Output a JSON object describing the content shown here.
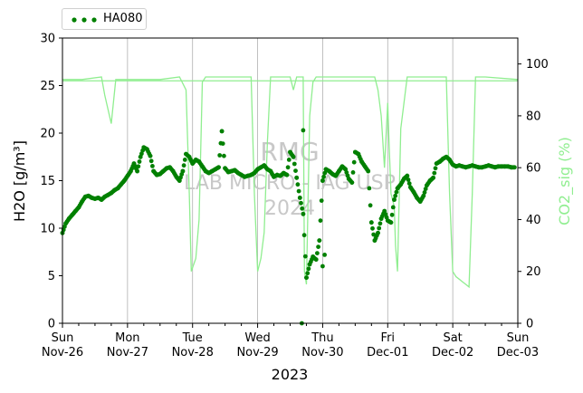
{
  "chart_data": {
    "type": "scatter",
    "xlabel": "2023",
    "ylabel_left": "H2O [g/m³]",
    "ylabel_right": "CO2_sig (%)",
    "ylim_left": [
      0,
      30
    ],
    "ylim_right": [
      0,
      110
    ],
    "xlim_days": [
      "2023-11-26",
      "2023-12-03"
    ],
    "yticks_left": [
      "0",
      "5",
      "10",
      "15",
      "20",
      "25",
      "30"
    ],
    "yticks_right": [
      "0",
      "20",
      "40",
      "60",
      "80",
      "100"
    ],
    "xticks": [
      {
        "day": "Sun",
        "date": "Nov-26"
      },
      {
        "day": "Mon",
        "date": "Nov-27"
      },
      {
        "day": "Tue",
        "date": "Nov-28"
      },
      {
        "day": "Wed",
        "date": "Nov-29"
      },
      {
        "day": "Thu",
        "date": "Nov-30"
      },
      {
        "day": "Fri",
        "date": "Dec-01"
      },
      {
        "day": "Sat",
        "date": "Dec-02"
      },
      {
        "day": "Sun",
        "date": "Dec-03"
      }
    ],
    "legend": {
      "position": "top-left",
      "entries": [
        "HA080"
      ]
    },
    "grid": "vertical",
    "colors": {
      "h2o": "#008000",
      "co2": "#90ee90"
    },
    "watermark": [
      "RMG",
      "LAB MICRO - IAG USP",
      "2024"
    ],
    "co2_reference_line": 93.5,
    "series": [
      {
        "name": "HA080",
        "axis": "left",
        "style": "dots",
        "x": [
          0,
          0.05,
          0.1,
          0.15,
          0.2,
          0.25,
          0.3,
          0.35,
          0.4,
          0.45,
          0.5,
          0.55,
          0.6,
          0.65,
          0.7,
          0.75,
          0.8,
          0.85,
          0.9,
          0.95,
          1.0,
          1.05,
          1.1,
          1.15,
          1.2,
          1.25,
          1.3,
          1.35,
          1.4,
          1.45,
          1.5,
          1.55,
          1.6,
          1.65,
          1.7,
          1.75,
          1.8,
          1.85,
          1.9,
          1.95,
          2.0,
          2.05,
          2.1,
          2.15,
          2.2,
          2.25,
          2.3,
          2.35,
          2.4,
          2.45,
          2.5,
          2.55,
          2.6,
          2.65,
          2.7,
          2.75,
          2.8,
          2.85,
          2.9,
          2.95,
          3.0,
          3.05,
          3.1,
          3.15,
          3.2,
          3.25,
          3.3,
          3.35,
          3.4,
          3.45,
          3.5,
          3.55,
          3.6,
          3.65,
          3.7,
          3.75,
          3.8,
          3.85,
          3.9,
          3.95,
          4.0,
          4.05,
          4.1,
          4.15,
          4.2,
          4.25,
          4.3,
          4.35,
          4.4,
          4.45,
          4.5,
          4.55,
          4.6,
          4.65,
          4.7,
          4.75,
          4.8,
          4.85,
          4.9,
          4.95,
          5.0,
          5.05,
          5.1,
          5.15,
          5.2,
          5.25,
          5.3,
          5.35,
          5.4,
          5.45,
          5.5,
          5.55,
          5.6,
          5.65,
          5.7,
          5.75,
          5.8,
          5.85,
          5.9,
          5.95,
          6.0,
          6.05,
          6.1,
          6.15,
          6.2,
          6.25,
          6.3,
          6.35,
          6.4,
          6.45,
          6.5,
          6.55,
          6.6,
          6.65,
          6.7,
          6.75,
          6.8,
          6.85,
          6.9,
          6.95,
          3.68,
          3.7,
          4.0,
          4.03
        ],
        "values": [
          9.5,
          10.5,
          11.0,
          11.4,
          11.8,
          12.2,
          12.8,
          13.3,
          13.4,
          13.2,
          13.1,
          13.2,
          13.0,
          13.3,
          13.5,
          13.7,
          14.0,
          14.2,
          14.6,
          15.0,
          15.5,
          16.0,
          16.8,
          16.0,
          17.5,
          18.5,
          18.3,
          17.6,
          16.0,
          15.6,
          15.7,
          16.0,
          16.3,
          16.4,
          16.0,
          15.4,
          15.0,
          16.0,
          17.8,
          17.5,
          16.8,
          17.2,
          17.0,
          16.5,
          16.0,
          15.8,
          16.0,
          16.2,
          16.4,
          20.2,
          16.3,
          15.9,
          16.0,
          16.1,
          15.8,
          15.6,
          15.4,
          15.5,
          15.6,
          15.8,
          16.2,
          16.4,
          16.6,
          16.2,
          16.0,
          15.4,
          15.6,
          15.5,
          15.8,
          15.6,
          18.0,
          17.5,
          15.3,
          13.2,
          11.5,
          4.8,
          6.2,
          7.0,
          6.7,
          8.7,
          15.0,
          16.2,
          16.0,
          15.7,
          15.5,
          16.0,
          16.5,
          16.2,
          15.2,
          14.8,
          18.0,
          17.8,
          17.0,
          16.5,
          16.0,
          10.6,
          8.7,
          9.5,
          11.0,
          11.8,
          10.8,
          10.6,
          13.0,
          14.2,
          14.6,
          15.2,
          15.5,
          14.3,
          13.8,
          13.2,
          12.8,
          13.4,
          14.5,
          15.0,
          15.3,
          16.8,
          17.0,
          17.3,
          17.5,
          17.2,
          16.7,
          16.5,
          16.6,
          16.5,
          16.4,
          16.5,
          16.6,
          16.5,
          16.4,
          16.4,
          16.5,
          16.6,
          16.5,
          16.4,
          16.5,
          16.5,
          16.5,
          16.5,
          16.4,
          16.4,
          0.0,
          20.3,
          6.0,
          7.2
        ],
        "x_active_max": 7.0
      },
      {
        "name": "CO2_sig",
        "axis": "right",
        "style": "line",
        "x": [
          0,
          0.3,
          0.6,
          0.65,
          0.75,
          0.82,
          0.88,
          0.92,
          1.0,
          1.5,
          1.8,
          1.9,
          1.95,
          1.98,
          2.05,
          2.1,
          2.15,
          2.2,
          2.3,
          2.6,
          2.9,
          2.95,
          3.0,
          3.05,
          3.1,
          3.15,
          3.2,
          3.3,
          3.5,
          3.55,
          3.6,
          3.7,
          3.72,
          3.75,
          3.8,
          3.85,
          3.9,
          4.0,
          4.5,
          4.8,
          4.85,
          4.9,
          4.95,
          5.0,
          5.02,
          5.05,
          5.1,
          5.12,
          5.15,
          5.2,
          5.3,
          5.8,
          5.9,
          5.95,
          6.0,
          6.05,
          6.1,
          6.15,
          6.2,
          6.25,
          6.3,
          6.35,
          6.4,
          6.5,
          7.0
        ],
        "values": [
          94,
          94,
          95,
          88,
          77,
          94,
          94,
          94,
          94,
          94,
          95,
          90,
          50,
          20,
          25,
          40,
          93,
          95,
          95,
          95,
          95,
          50,
          20,
          25,
          35,
          70,
          95,
          95,
          95,
          90,
          95,
          95,
          20,
          15,
          80,
          93,
          95,
          95,
          95,
          95,
          90,
          80,
          60,
          85,
          70,
          50,
          45,
          30,
          20,
          75,
          95,
          95,
          95,
          50,
          20,
          18,
          17,
          16,
          15,
          14,
          50,
          95,
          95,
          95,
          94
        ],
        "x_active_max": 7.0
      }
    ]
  }
}
